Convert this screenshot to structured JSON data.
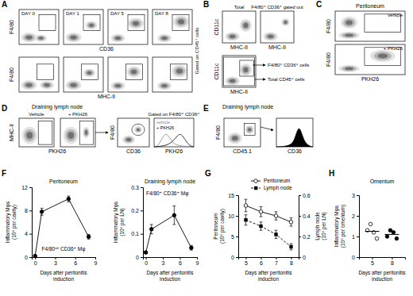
{
  "panels": {
    "A": {
      "letter": "A",
      "caption": "Gated on CD45⁺ cells",
      "days": [
        "DAY 0",
        "DAY 1",
        "DAY 5",
        "DAY 8"
      ],
      "y_label": "F4/80",
      "x_labels": [
        "CD36",
        "MHC-II"
      ]
    },
    "B": {
      "letter": "B",
      "titles": [
        "Total",
        "F4/80⁺ CD36⁺ gated out"
      ],
      "y_label": "CD11c",
      "x_label": "MHC-II",
      "gates": [
        "F4/80⁺ CD36⁺ cells",
        "Total CD45⁺ cells"
      ]
    },
    "C": {
      "letter": "C",
      "title": "Peritoneum",
      "conditions": [
        "vehicle",
        "+ PKH26"
      ],
      "y_label": "F4/80",
      "x_label": "PKH26"
    },
    "D": {
      "letter": "D",
      "title": "Draining lymph node",
      "conditions": [
        "Vehicle",
        "+ PKH26"
      ],
      "y_labels": [
        "MHC-II",
        "F4/80"
      ],
      "x_labels": [
        "PKH26",
        "CD36",
        "PKH26"
      ],
      "gate_title": "Gated on F4/80⁺ CD36⁺",
      "legend": [
        "vehicle",
        "+ PKH26"
      ]
    },
    "E": {
      "letter": "E",
      "title": "Draining lymph node",
      "y_label": "F4/80",
      "x_labels": [
        "CD45.1",
        "CD36"
      ]
    }
  },
  "chart_data": [
    {
      "type": "line",
      "panel_label": "F",
      "title": "Peritoneum",
      "x_label": [
        "Days after peritonitis",
        "induction"
      ],
      "y_label": [
        "Inflammatory Mφs",
        "(10⁶ per cavity)"
      ],
      "x": [
        0,
        1,
        5,
        8
      ],
      "series": [
        {
          "name": "F4/80ⁱⁿᵗ CD36⁺ Mφ",
          "color": "#000000",
          "marker": "circle",
          "line_style": "solid",
          "values": [
            0.2,
            7.8,
            10,
            3.5
          ],
          "errors": [
            0.1,
            0.6,
            0.5,
            0.4
          ]
        }
      ],
      "xlim": [
        -0.5,
        9
      ],
      "xticks": [
        0,
        3,
        6,
        9
      ],
      "ylim": [
        0,
        12
      ],
      "yticks": [
        0,
        4,
        8,
        12
      ]
    },
    {
      "type": "line",
      "title": "Draining lymph node",
      "x_label": [
        "Days after peritonitis",
        "induction"
      ],
      "y_label": [
        "Inflammatory Mφs",
        "(10⁶ per LN)"
      ],
      "x": [
        0,
        1,
        5,
        8
      ],
      "series": [
        {
          "name": "F4/80⁺ CD36⁺ Mφ",
          "color": "#000000",
          "marker": "circle",
          "line_style": "solid",
          "values": [
            0.02,
            0.12,
            0.18,
            0.04
          ],
          "errors": [
            0.005,
            0.02,
            0.04,
            0.01
          ]
        }
      ],
      "xlim": [
        -0.5,
        9
      ],
      "xticks": [
        0,
        3,
        6,
        9
      ],
      "ylim": [
        0,
        0.3
      ],
      "yticks": [
        0,
        0.1,
        0.2,
        0.3
      ]
    },
    {
      "type": "line",
      "panel_label": "G",
      "x_label": [
        "Days after peritonitis",
        "induction"
      ],
      "y_label": [
        "Peritoneum",
        "(10⁶ per cavity)"
      ],
      "y2_label": [
        "Lymph node",
        "(10⁶ per LN)"
      ],
      "x": [
        5,
        6,
        7,
        8
      ],
      "series": [
        {
          "name": "Peritoneum",
          "color": "#000000",
          "marker": "circle-open",
          "line_style": "solid",
          "values": [
            12.5,
            11,
            10,
            8.5
          ],
          "errors": [
            1.5,
            1.2,
            1,
            1
          ]
        },
        {
          "name": "Lymph node",
          "color": "#000000",
          "marker": "square",
          "line_style": "dashed",
          "axis": "y2",
          "values": [
            0.36,
            0.3,
            0.22,
            0.1
          ],
          "errors": [
            0.05,
            0.04,
            0.04,
            0.03
          ]
        }
      ],
      "xlim": [
        4.5,
        8.5
      ],
      "xticks": [
        5,
        6,
        7,
        8
      ],
      "ylim": [
        0,
        15
      ],
      "yticks": [
        0,
        5,
        10,
        15
      ],
      "y2lim": [
        0,
        0.6
      ],
      "y2ticks": [
        0,
        0.2,
        0.4,
        0.6
      ],
      "legend": "top"
    },
    {
      "type": "scatter",
      "panel_label": "H",
      "title": "Omentum",
      "x_label": [
        "Days after peritonitis",
        "induction"
      ],
      "y_label": [
        "Inflammatory Mφs",
        "(10⁶ per omentum)"
      ],
      "series": [
        {
          "marker": "circle-open",
          "color": "#000000",
          "x": [
            5,
            5,
            5,
            5
          ],
          "values": [
            1.3,
            1.6,
            1.2,
            0.9
          ],
          "median": 1.25
        },
        {
          "marker": "circle",
          "color": "#000000",
          "x": [
            8,
            8,
            8,
            8
          ],
          "values": [
            1.0,
            1.3,
            1.2,
            0.9
          ],
          "median": 1.1
        }
      ],
      "xlim": [
        3,
        10
      ],
      "xticks": [
        5,
        8
      ],
      "ylim": [
        0,
        3
      ],
      "yticks": [
        0,
        1,
        2,
        3
      ]
    }
  ]
}
